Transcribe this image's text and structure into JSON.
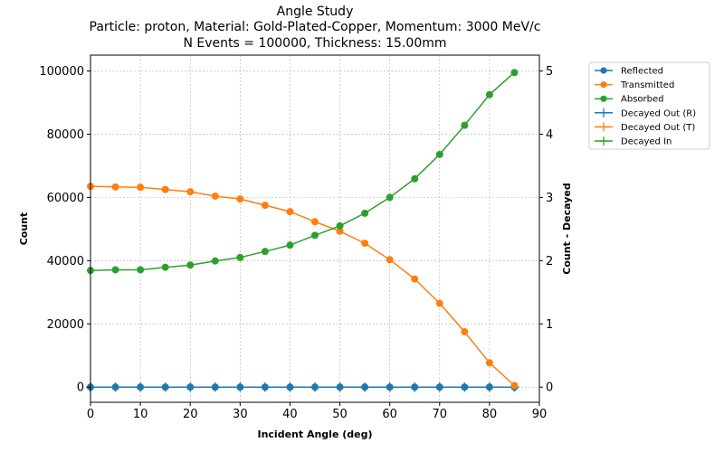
{
  "chart_data": {
    "type": "line",
    "title": "Angle Study",
    "subtitle_lines": [
      "Particle: proton, Material: Gold-Plated-Copper, Momentum: 3000 MeV/c",
      "N Events = 100000, Thickness: 15.00mm"
    ],
    "xlabel": "Incident Angle (deg)",
    "ylabel": "Count",
    "ylabel_right": "Count - Decayed",
    "xlim": [
      0,
      90
    ],
    "ylim": [
      -4800,
      105000
    ],
    "ylim_right": [
      -0.24,
      5.25
    ],
    "x_ticks": [
      0,
      10,
      20,
      30,
      40,
      50,
      60,
      70,
      80,
      90
    ],
    "y_ticks": [
      0,
      20000,
      40000,
      60000,
      80000,
      100000
    ],
    "y_ticks_right": [
      0,
      1,
      2,
      3,
      4,
      5
    ],
    "grid": true,
    "legend_position": "outside-right",
    "x": [
      0,
      5,
      10,
      15,
      20,
      25,
      30,
      35,
      40,
      45,
      50,
      55,
      60,
      65,
      70,
      75,
      80,
      85
    ],
    "series": [
      {
        "name": "Reflected",
        "axis": "left",
        "marker": "circle",
        "color": "#1f77b4",
        "values": [
          0,
          0,
          0,
          0,
          0,
          0,
          0,
          0,
          0,
          0,
          0,
          0,
          0,
          0,
          0,
          0,
          0,
          0
        ]
      },
      {
        "name": "Transmitted",
        "axis": "left",
        "marker": "circle",
        "color": "#ff7f0e",
        "values": [
          63500,
          63300,
          63200,
          62500,
          61800,
          60400,
          59500,
          57500,
          55500,
          52300,
          49300,
          45500,
          40300,
          34200,
          26500,
          17500,
          7700,
          500
        ]
      },
      {
        "name": "Absorbed",
        "axis": "left",
        "marker": "circle",
        "color": "#2ca02c",
        "values": [
          36900,
          37100,
          37100,
          37900,
          38600,
          39900,
          41000,
          42900,
          44900,
          48000,
          51000,
          55000,
          60000,
          65900,
          73600,
          82800,
          92500,
          99500
        ]
      },
      {
        "name": "Decayed Out (R)",
        "axis": "right",
        "marker": "plus",
        "color": "#1f77b4",
        "values": [
          0,
          0,
          0,
          0,
          0,
          0,
          0,
          0,
          0,
          0,
          0,
          0,
          0,
          0,
          0,
          0,
          0,
          0
        ]
      },
      {
        "name": "Decayed Out (T)",
        "axis": "right",
        "marker": "plus",
        "color": "#ff7f0e",
        "values": [
          0,
          0,
          0,
          0,
          0,
          0,
          0,
          0,
          0,
          0,
          0,
          0,
          0,
          0,
          0,
          0,
          0,
          0
        ]
      },
      {
        "name": "Decayed In",
        "axis": "right",
        "marker": "plus",
        "color": "#2ca02c",
        "values": [
          0,
          0,
          0,
          0,
          0,
          0,
          0,
          0,
          0,
          0,
          0,
          0,
          0,
          0,
          0,
          0,
          0,
          0
        ]
      }
    ]
  },
  "colors": {
    "right_axis_label": "#ff0000",
    "grid": "#b0b0b0"
  }
}
